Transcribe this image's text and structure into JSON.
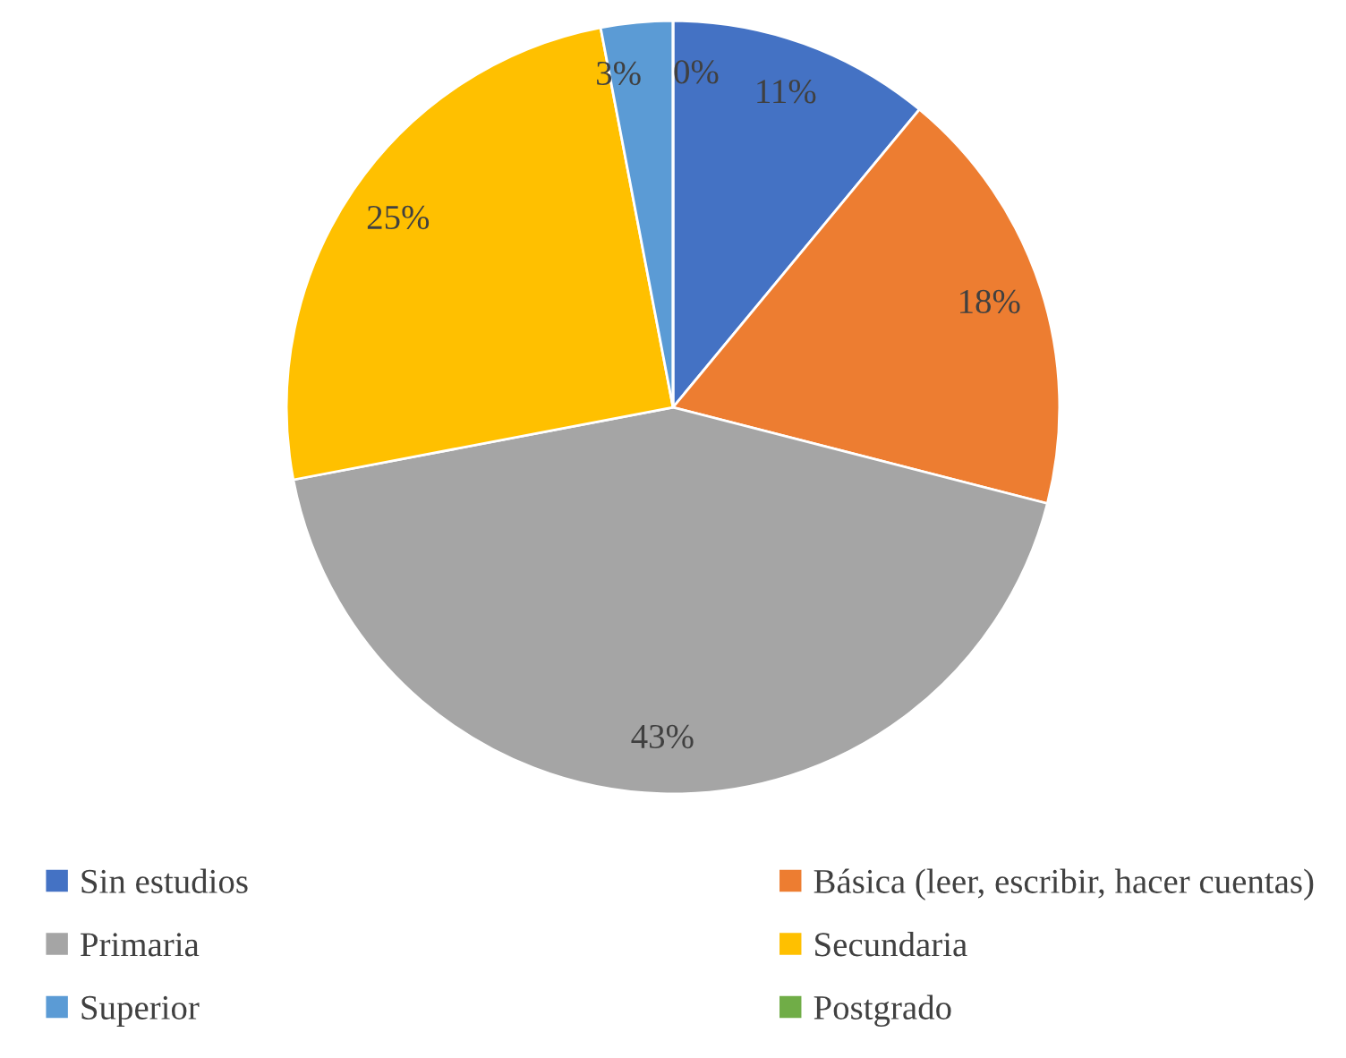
{
  "chart_data": {
    "type": "pie",
    "categories": [
      "Sin estudios",
      "Básica (leer, escribir, hacer cuentas)",
      "Primaria",
      "Secundaria",
      "Superior",
      "Postgrado"
    ],
    "values": [
      11,
      18,
      43,
      25,
      3,
      0
    ],
    "value_labels": [
      "11%",
      "18%",
      "43%",
      "25%",
      "3%",
      "0%"
    ],
    "colors": [
      "#4472c4",
      "#ed7d31",
      "#a5a5a5",
      "#ffc000",
      "#5b9bd5",
      "#70ad47"
    ],
    "legend": "bottom"
  }
}
